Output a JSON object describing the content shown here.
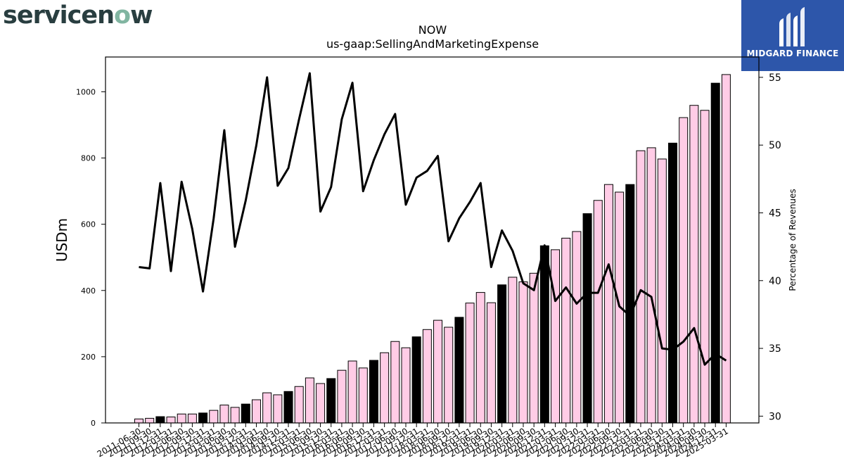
{
  "brand": {
    "logo_text_prefix": "servicen",
    "logo_text_o": "o",
    "logo_text_suffix": "w",
    "badge_name": "MIDGARD FINANCE",
    "badge_mark": "m-logo-icon"
  },
  "colors": {
    "bar_default": "#ffcce6",
    "bar_highlight": "#000000",
    "line": "#000000",
    "badge_bg": "#2d56aa",
    "logo_dark": "#293e40",
    "logo_accent": "#81b5a1"
  },
  "chart_data": {
    "type": "bar",
    "title": "NOW",
    "subtitle": "us-gaap:SellingAndMarketingExpense",
    "ylabel": "USDm",
    "y2label": "Percentage of Revenues",
    "ylim": [
      0,
      1105
    ],
    "y2lim": [
      29.5,
      56.5
    ],
    "yticks": [
      0,
      200,
      400,
      600,
      800,
      1000
    ],
    "y2ticks": [
      30,
      35,
      40,
      45,
      50,
      55
    ],
    "grid": false,
    "categories": [
      "2011-06-30",
      "2011-09-30",
      "2011-12-31",
      "2012-03-31",
      "2012-06-30",
      "2012-09-30",
      "2012-12-31",
      "2013-03-31",
      "2013-06-30",
      "2013-09-30",
      "2013-12-31",
      "2014-03-31",
      "2014-06-30",
      "2014-09-30",
      "2014-12-31",
      "2015-03-31",
      "2015-06-30",
      "2015-09-30",
      "2015-12-31",
      "2016-03-31",
      "2016-06-30",
      "2016-09-30",
      "2016-12-31",
      "2017-03-31",
      "2017-06-30",
      "2017-09-30",
      "2017-12-31",
      "2018-03-31",
      "2018-06-30",
      "2018-09-30",
      "2018-12-31",
      "2019-03-31",
      "2019-06-30",
      "2019-09-30",
      "2019-12-31",
      "2020-03-31",
      "2020-06-30",
      "2020-09-30",
      "2020-12-31",
      "2021-03-31",
      "2021-06-30",
      "2021-09-30",
      "2021-12-31",
      "2022-03-31",
      "2022-06-30",
      "2022-09-30",
      "2022-12-31",
      "2023-03-31",
      "2023-06-30",
      "2023-09-30",
      "2023-12-31",
      "2024-03-31",
      "2024-06-30",
      "2024-09-30",
      "2024-12-31",
      "2025-03-31"
    ],
    "series": [
      {
        "kind": "bar",
        "axis": "left",
        "values": [
          12,
          14,
          19,
          18,
          27,
          27,
          30,
          38,
          54,
          47,
          57,
          70,
          91,
          85,
          95,
          110,
          136,
          119,
          134,
          159,
          187,
          166,
          189,
          212,
          246,
          227,
          260,
          282,
          310,
          289,
          319,
          362,
          394,
          363,
          417,
          440,
          426,
          452,
          535,
          523,
          558,
          578,
          632,
          672,
          720,
          697,
          720,
          822,
          831,
          797,
          845,
          922,
          959,
          944,
          1026,
          1052
        ],
        "highlight": [
          false,
          false,
          true,
          false,
          false,
          false,
          true,
          false,
          false,
          false,
          true,
          false,
          false,
          false,
          true,
          false,
          false,
          false,
          true,
          false,
          false,
          false,
          true,
          false,
          false,
          false,
          true,
          false,
          false,
          false,
          true,
          false,
          false,
          false,
          true,
          false,
          false,
          false,
          true,
          false,
          false,
          false,
          true,
          false,
          false,
          false,
          true,
          false,
          false,
          false,
          true,
          false,
          false,
          false,
          true,
          false
        ]
      },
      {
        "kind": "line",
        "axis": "right",
        "values": [
          41.0,
          40.9,
          47.2,
          40.7,
          47.3,
          43.8,
          39.2,
          44.6,
          51.1,
          42.5,
          45.9,
          50.0,
          55.0,
          47.0,
          48.3,
          51.9,
          55.3,
          45.1,
          46.9,
          51.9,
          54.6,
          46.6,
          48.9,
          50.8,
          52.3,
          45.6,
          47.6,
          48.1,
          49.2,
          42.9,
          44.6,
          45.8,
          47.2,
          41.0,
          43.7,
          42.2,
          39.8,
          39.3,
          42.6,
          38.5,
          39.5,
          38.3,
          39.1,
          39.1,
          41.2,
          38.1,
          37.4,
          39.3,
          38.8,
          35.0,
          34.9,
          35.5,
          36.5,
          33.8,
          34.6,
          34.1
        ]
      }
    ]
  }
}
